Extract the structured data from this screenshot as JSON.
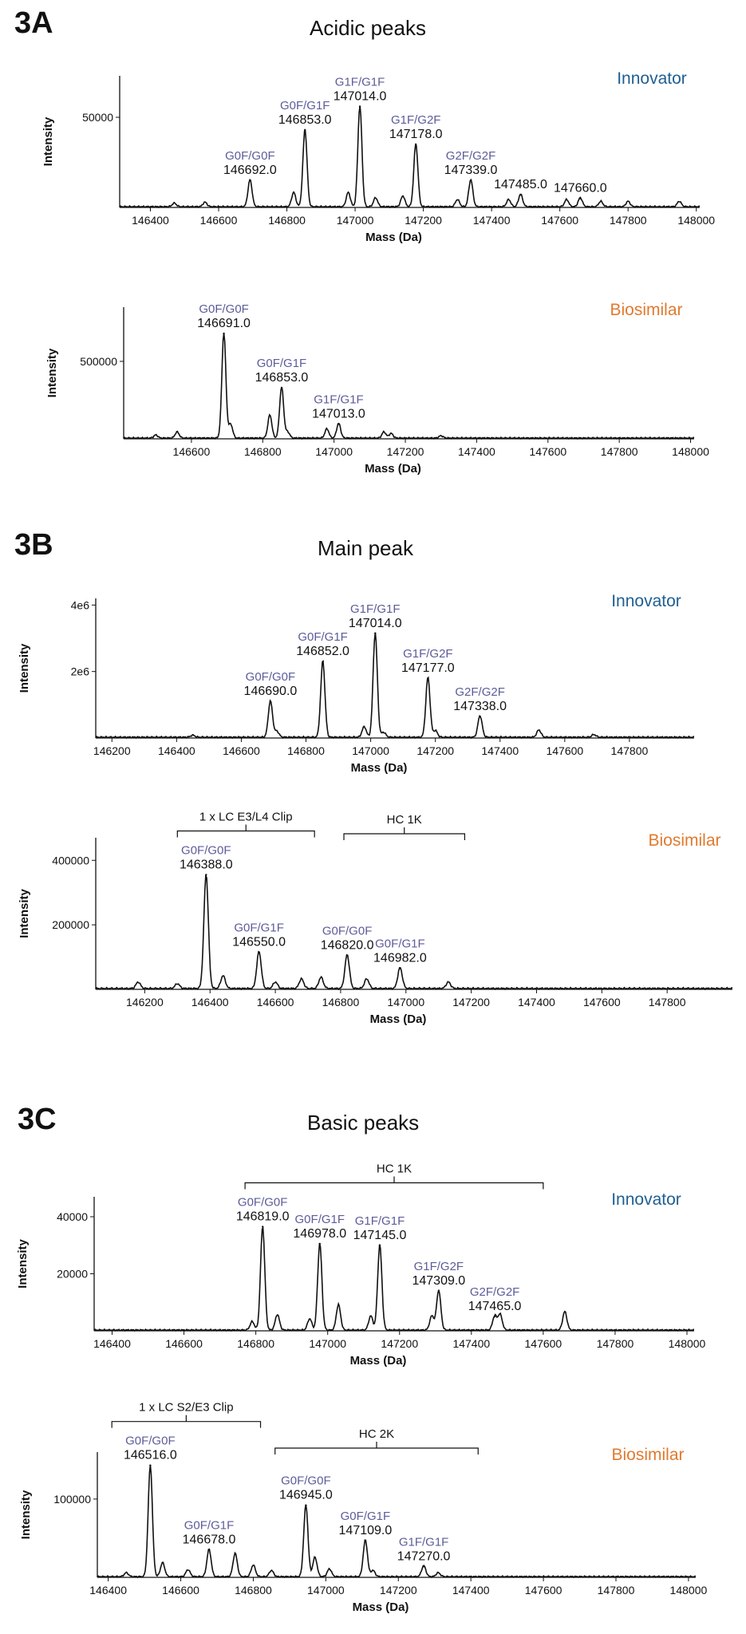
{
  "colors": {
    "innovator": "#1f5f92",
    "biosimilar": "#e07a2f",
    "glycan": "#5c5c9a",
    "trace": "#111111"
  },
  "sections": [
    {
      "id": "3A",
      "panel_label": "3A",
      "title": "Acidic peaks"
    },
    {
      "id": "3B",
      "panel_label": "3B",
      "title": "Main peak"
    },
    {
      "id": "3C",
      "panel_label": "3C",
      "title": "Basic peaks"
    }
  ],
  "chart_data": [
    {
      "type": "line",
      "section": "3A",
      "sample": "Innovator",
      "xlabel": "Mass (Da)",
      "ylabel": "Intensity",
      "xlim": [
        146310,
        148010
      ],
      "ylim": [
        0,
        73000
      ],
      "xticks": [
        146400,
        146600,
        146800,
        147000,
        147200,
        147400,
        147600,
        147800,
        148000
      ],
      "xtick_labels": [
        "146400",
        "146600",
        "146800",
        "147000",
        "147200",
        "147400",
        "147600",
        "147800",
        "148000"
      ],
      "yticks": [
        50000
      ],
      "ytick_labels": [
        "50000"
      ],
      "peaks": [
        {
          "mass": 146692,
          "intensity": 15000,
          "glycan": "G0F/G0F",
          "label": "146692.0"
        },
        {
          "mass": 146853,
          "intensity": 43000,
          "glycan": "G0F/G1F",
          "label": "146853.0"
        },
        {
          "mass": 147014,
          "intensity": 56000,
          "glycan": "G1F/G1F",
          "label": "147014.0"
        },
        {
          "mass": 147178,
          "intensity": 35000,
          "glycan": "G1F/G2F",
          "label": "147178.0"
        },
        {
          "mass": 147339,
          "intensity": 15000,
          "glycan": "G2F/G2F",
          "label": "147339.0"
        },
        {
          "mass": 147485,
          "intensity": 7000,
          "glycan": "",
          "label": "147485.0"
        },
        {
          "mass": 147660,
          "intensity": 5000,
          "glycan": "",
          "label": "147660.0"
        }
      ],
      "minor_peaks": [
        {
          "mass": 146470,
          "intensity": 2000
        },
        {
          "mass": 146560,
          "intensity": 2500
        },
        {
          "mass": 146820,
          "intensity": 8000
        },
        {
          "mass": 146980,
          "intensity": 8000
        },
        {
          "mass": 147060,
          "intensity": 5000
        },
        {
          "mass": 147140,
          "intensity": 6000
        },
        {
          "mass": 147300,
          "intensity": 4000
        },
        {
          "mass": 147450,
          "intensity": 4000
        },
        {
          "mass": 147620,
          "intensity": 4000
        },
        {
          "mass": 147720,
          "intensity": 3000
        },
        {
          "mass": 147800,
          "intensity": 3000
        },
        {
          "mass": 147950,
          "intensity": 3000
        }
      ]
    },
    {
      "type": "line",
      "section": "3A",
      "sample": "Biosimilar",
      "xlabel": "Mass (Da)",
      "ylabel": "Intensity",
      "xlim": [
        146410,
        148010
      ],
      "ylim": [
        0,
        850000
      ],
      "xticks": [
        146600,
        146800,
        147000,
        147200,
        147400,
        147600,
        147800,
        148000
      ],
      "xtick_labels": [
        "146600",
        "146800",
        "147000",
        "147200",
        "147400",
        "147600",
        "147800",
        "148000"
      ],
      "yticks": [
        500000
      ],
      "ytick_labels": [
        "500000"
      ],
      "peaks": [
        {
          "mass": 146691,
          "intensity": 680000,
          "glycan": "G0F/G0F",
          "label": "146691.0"
        },
        {
          "mass": 146853,
          "intensity": 330000,
          "glycan": "G0F/G1F",
          "label": "146853.0"
        },
        {
          "mass": 147013,
          "intensity": 95000,
          "glycan": "G1F/G1F",
          "label": "147013.0"
        }
      ],
      "minor_peaks": [
        {
          "mass": 146500,
          "intensity": 20000
        },
        {
          "mass": 146560,
          "intensity": 40000
        },
        {
          "mass": 146710,
          "intensity": 90000
        },
        {
          "mass": 146820,
          "intensity": 150000
        },
        {
          "mass": 146870,
          "intensity": 40000
        },
        {
          "mass": 146980,
          "intensity": 60000
        },
        {
          "mass": 147140,
          "intensity": 40000
        },
        {
          "mass": 147160,
          "intensity": 30000
        },
        {
          "mass": 147300,
          "intensity": 15000
        }
      ]
    },
    {
      "type": "line",
      "section": "3B",
      "sample": "Innovator",
      "xlabel": "Mass (Da)",
      "ylabel": "Intensity",
      "xlim": [
        146150,
        148000
      ],
      "ylim": [
        0,
        4200000
      ],
      "xticks": [
        146200,
        146400,
        146600,
        146800,
        147000,
        147200,
        147400,
        147600,
        147800
      ],
      "xtick_labels": [
        "146200",
        "146400",
        "146600",
        "146800",
        "147000",
        "147200",
        "147400",
        "147600",
        "147800"
      ],
      "yticks": [
        2000000,
        4000000
      ],
      "ytick_labels": [
        "2e6",
        "4e6"
      ],
      "peaks": [
        {
          "mass": 146690,
          "intensity": 1100000,
          "glycan": "G0F/G0F",
          "label": "146690.0"
        },
        {
          "mass": 146852,
          "intensity": 2300000,
          "glycan": "G0F/G1F",
          "label": "146852.0"
        },
        {
          "mass": 147014,
          "intensity": 3150000,
          "glycan": "G1F/G1F",
          "label": "147014.0"
        },
        {
          "mass": 147177,
          "intensity": 1800000,
          "glycan": "G1F/G2F",
          "label": "147177.0"
        },
        {
          "mass": 147338,
          "intensity": 650000,
          "glycan": "G2F/G2F",
          "label": "147338.0"
        }
      ],
      "minor_peaks": [
        {
          "mass": 146450,
          "intensity": 60000
        },
        {
          "mass": 146710,
          "intensity": 180000
        },
        {
          "mass": 146980,
          "intensity": 320000
        },
        {
          "mass": 147040,
          "intensity": 150000
        },
        {
          "mass": 147200,
          "intensity": 200000
        },
        {
          "mass": 147520,
          "intensity": 220000
        },
        {
          "mass": 147690,
          "intensity": 80000
        }
      ]
    },
    {
      "type": "line",
      "section": "3B",
      "sample": "Biosimilar",
      "xlabel": "Mass (Da)",
      "ylabel": "Intensity",
      "xlim": [
        146050,
        148000
      ],
      "ylim": [
        0,
        470000
      ],
      "xticks": [
        146200,
        146400,
        146600,
        146800,
        147000,
        147200,
        147400,
        147600,
        147800
      ],
      "xtick_labels": [
        "146200",
        "146400",
        "146600",
        "146800",
        "147000",
        "147200",
        "147400",
        "147600",
        "147800"
      ],
      "yticks": [
        200000,
        400000
      ],
      "ytick_labels": [
        "200000",
        "400000"
      ],
      "peaks": [
        {
          "mass": 146388,
          "intensity": 355000,
          "glycan": "G0F/G0F",
          "label": "146388.0"
        },
        {
          "mass": 146550,
          "intensity": 115000,
          "glycan": "G0F/G1F",
          "label": "146550.0"
        },
        {
          "mass": 146820,
          "intensity": 105000,
          "glycan": "G0F/G0F",
          "label": "146820.0"
        },
        {
          "mass": 146982,
          "intensity": 65000,
          "glycan": "G0F/G1F",
          "label": "146982.0"
        }
      ],
      "minor_peaks": [
        {
          "mass": 146180,
          "intensity": 20000
        },
        {
          "mass": 146300,
          "intensity": 15000
        },
        {
          "mass": 146440,
          "intensity": 40000
        },
        {
          "mass": 146600,
          "intensity": 20000
        },
        {
          "mass": 146680,
          "intensity": 30000
        },
        {
          "mass": 146740,
          "intensity": 35000
        },
        {
          "mass": 146880,
          "intensity": 30000
        },
        {
          "mass": 147130,
          "intensity": 20000
        }
      ],
      "brackets": [
        {
          "label": "1 x LC E3/L4 Clip",
          "from": 146300,
          "to": 146720
        },
        {
          "label": "HC 1K",
          "from": 146810,
          "to": 147180
        }
      ]
    },
    {
      "type": "line",
      "section": "3C",
      "sample": "Innovator",
      "xlabel": "Mass (Da)",
      "ylabel": "Intensity",
      "xlim": [
        146350,
        148020
      ],
      "ylim": [
        0,
        47000
      ],
      "xticks": [
        146400,
        146600,
        146800,
        147000,
        147200,
        147400,
        147600,
        147800,
        148000
      ],
      "xtick_labels": [
        "146400",
        "146600",
        "146800",
        "147000",
        "147200",
        "147400",
        "147600",
        "147800",
        "148000"
      ],
      "yticks": [
        20000,
        40000
      ],
      "ytick_labels": [
        "20000",
        "40000"
      ],
      "peaks": [
        {
          "mass": 146819,
          "intensity": 36500,
          "glycan": "G0F/G0F",
          "label": "146819.0"
        },
        {
          "mass": 146978,
          "intensity": 30500,
          "glycan": "G0F/G1F",
          "label": "146978.0"
        },
        {
          "mass": 147145,
          "intensity": 30000,
          "glycan": "G1F/G1F",
          "label": "147145.0"
        },
        {
          "mass": 147309,
          "intensity": 14000,
          "glycan": "G1F/G2F",
          "label": "147309.0"
        },
        {
          "mass": 147465,
          "intensity": 5000,
          "glycan": "G2F/G2F",
          "label": "147465.0"
        }
      ],
      "minor_peaks": [
        {
          "mass": 146790,
          "intensity": 3000
        },
        {
          "mass": 146860,
          "intensity": 5500
        },
        {
          "mass": 146950,
          "intensity": 4000
        },
        {
          "mass": 147030,
          "intensity": 9000
        },
        {
          "mass": 147120,
          "intensity": 5000
        },
        {
          "mass": 147290,
          "intensity": 5000
        },
        {
          "mass": 147480,
          "intensity": 5500
        },
        {
          "mass": 147660,
          "intensity": 6500
        }
      ],
      "brackets": [
        {
          "label": "HC 1K",
          "from": 146770,
          "to": 147600
        }
      ]
    },
    {
      "type": "line",
      "section": "3C",
      "sample": "Biosimilar",
      "xlabel": "Mass (Da)",
      "ylabel": "Intensity",
      "xlim": [
        146370,
        148020
      ],
      "ylim": [
        0,
        160000
      ],
      "xticks": [
        146400,
        146600,
        146800,
        147000,
        147200,
        147400,
        147600,
        147800,
        148000
      ],
      "xtick_labels": [
        "146400",
        "146600",
        "146800",
        "147000",
        "147200",
        "147400",
        "147600",
        "147800",
        "148000"
      ],
      "yticks": [
        100000
      ],
      "ytick_labels": [
        "100000"
      ],
      "peaks": [
        {
          "mass": 146516,
          "intensity": 143000,
          "glycan": "G0F/G0F",
          "label": "146516.0"
        },
        {
          "mass": 146678,
          "intensity": 35000,
          "glycan": "G0F/G1F",
          "label": "146678.0"
        },
        {
          "mass": 146945,
          "intensity": 92000,
          "glycan": "G0F/G0F",
          "label": "146945.0"
        },
        {
          "mass": 147109,
          "intensity": 47000,
          "glycan": "G0F/G1F",
          "label": "147109.0"
        },
        {
          "mass": 147270,
          "intensity": 14000,
          "glycan": "G1F/G1F",
          "label": "147270.0"
        }
      ],
      "minor_peaks": [
        {
          "mass": 146450,
          "intensity": 5000
        },
        {
          "mass": 146550,
          "intensity": 18000
        },
        {
          "mass": 146620,
          "intensity": 9000
        },
        {
          "mass": 146750,
          "intensity": 30000
        },
        {
          "mass": 146800,
          "intensity": 15000
        },
        {
          "mass": 146850,
          "intensity": 8000
        },
        {
          "mass": 146970,
          "intensity": 25000
        },
        {
          "mass": 147010,
          "intensity": 10000
        },
        {
          "mass": 147130,
          "intensity": 8000
        },
        {
          "mass": 147310,
          "intensity": 5000
        }
      ],
      "brackets": [
        {
          "label": "1 x LC S2/E3 Clip",
          "from": 146410,
          "to": 146820
        },
        {
          "label": "HC 2K",
          "from": 146860,
          "to": 147420
        }
      ]
    }
  ]
}
